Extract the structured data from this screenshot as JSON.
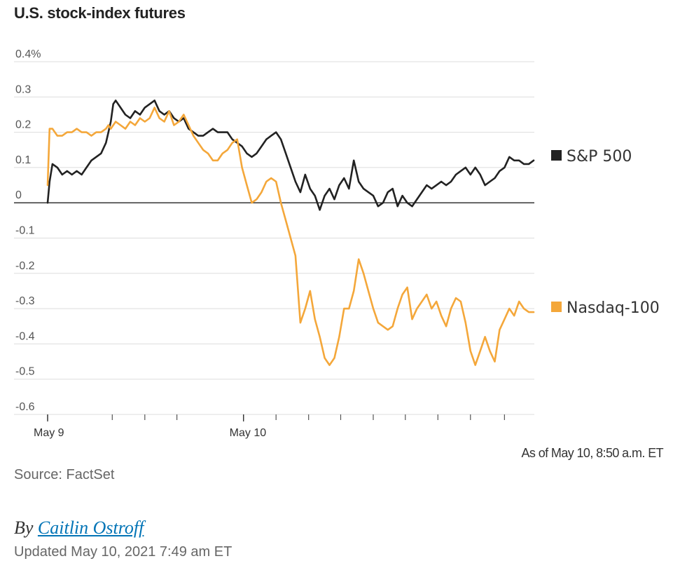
{
  "header": {
    "title": "U.S. stock-index futures"
  },
  "chart_data": {
    "type": "line",
    "title": "U.S. stock-index futures",
    "ylim": [
      -0.6,
      0.4
    ],
    "y_ticks": [
      "0.4%",
      "0.3",
      "0.2",
      "0.1",
      "0",
      "-0.1",
      "-0.2",
      "-0.3",
      "-0.4",
      "-0.5",
      "-0.6"
    ],
    "x_tick_labels": [
      "May 9",
      "May 10"
    ],
    "grid": true,
    "legend_placement": "right",
    "series": [
      {
        "name": "S&P 500",
        "color": "#222222",
        "points": [
          [
            0,
            0.0
          ],
          [
            0.4,
            0.06
          ],
          [
            1,
            0.11
          ],
          [
            2,
            0.1
          ],
          [
            3,
            0.08
          ],
          [
            4,
            0.09
          ],
          [
            5,
            0.08
          ],
          [
            6,
            0.09
          ],
          [
            7,
            0.08
          ],
          [
            8,
            0.1
          ],
          [
            9,
            0.12
          ],
          [
            10,
            0.13
          ],
          [
            11,
            0.14
          ],
          [
            12,
            0.17
          ],
          [
            12.5,
            0.2
          ],
          [
            13,
            0.23
          ],
          [
            13.5,
            0.28
          ],
          [
            14,
            0.29
          ],
          [
            15,
            0.27
          ],
          [
            16,
            0.25
          ],
          [
            17,
            0.24
          ],
          [
            18,
            0.26
          ],
          [
            19,
            0.25
          ],
          [
            20,
            0.27
          ],
          [
            21,
            0.28
          ],
          [
            22,
            0.29
          ],
          [
            23,
            0.26
          ],
          [
            24,
            0.25
          ],
          [
            25,
            0.26
          ],
          [
            26,
            0.24
          ],
          [
            27,
            0.23
          ],
          [
            28,
            0.24
          ],
          [
            29,
            0.21
          ],
          [
            30,
            0.2
          ],
          [
            31,
            0.19
          ],
          [
            32,
            0.19
          ],
          [
            33,
            0.2
          ],
          [
            34,
            0.21
          ],
          [
            35,
            0.2
          ],
          [
            36,
            0.2
          ],
          [
            37,
            0.2
          ],
          [
            38,
            0.18
          ],
          [
            39,
            0.17
          ],
          [
            40,
            0.16
          ],
          [
            41,
            0.14
          ],
          [
            42,
            0.13
          ],
          [
            43,
            0.14
          ],
          [
            44,
            0.16
          ],
          [
            45,
            0.18
          ],
          [
            46,
            0.19
          ],
          [
            47,
            0.2
          ],
          [
            48,
            0.18
          ],
          [
            49,
            0.14
          ],
          [
            50,
            0.1
          ],
          [
            51,
            0.06
          ],
          [
            52,
            0.03
          ],
          [
            53,
            0.08
          ],
          [
            54,
            0.04
          ],
          [
            55,
            0.02
          ],
          [
            56,
            -0.02
          ],
          [
            57,
            0.02
          ],
          [
            58,
            0.04
          ],
          [
            59,
            0.01
          ],
          [
            60,
            0.05
          ],
          [
            61,
            0.07
          ],
          [
            62,
            0.04
          ],
          [
            63,
            0.12
          ],
          [
            64,
            0.06
          ],
          [
            65,
            0.04
          ],
          [
            66,
            0.03
          ],
          [
            67,
            0.02
          ],
          [
            68,
            -0.01
          ],
          [
            69,
            0.0
          ],
          [
            70,
            0.03
          ],
          [
            71,
            0.04
          ],
          [
            72,
            -0.01
          ],
          [
            73,
            0.02
          ],
          [
            74,
            0.0
          ],
          [
            75,
            -0.01
          ],
          [
            76,
            0.01
          ],
          [
            77,
            0.03
          ],
          [
            78,
            0.05
          ],
          [
            79,
            0.04
          ],
          [
            80,
            0.05
          ],
          [
            81,
            0.06
          ],
          [
            82,
            0.05
          ],
          [
            83,
            0.06
          ],
          [
            84,
            0.08
          ],
          [
            85,
            0.09
          ],
          [
            86,
            0.1
          ],
          [
            87,
            0.08
          ],
          [
            88,
            0.1
          ],
          [
            89,
            0.08
          ],
          [
            90,
            0.05
          ],
          [
            91,
            0.06
          ],
          [
            92,
            0.07
          ],
          [
            93,
            0.09
          ],
          [
            94,
            0.1
          ],
          [
            95,
            0.13
          ],
          [
            96,
            0.12
          ],
          [
            97,
            0.12
          ],
          [
            98,
            0.11
          ],
          [
            99,
            0.11
          ],
          [
            100,
            0.12
          ]
        ]
      },
      {
        "name": "Nasdaq-100",
        "color": "#f4a73a",
        "points": [
          [
            0,
            0.05
          ],
          [
            0.4,
            0.21
          ],
          [
            1,
            0.21
          ],
          [
            2,
            0.19
          ],
          [
            3,
            0.19
          ],
          [
            4,
            0.2
          ],
          [
            5,
            0.2
          ],
          [
            6,
            0.21
          ],
          [
            7,
            0.2
          ],
          [
            8,
            0.2
          ],
          [
            9,
            0.19
          ],
          [
            10,
            0.2
          ],
          [
            11,
            0.2
          ],
          [
            12,
            0.21
          ],
          [
            12.5,
            0.22
          ],
          [
            13,
            0.21
          ],
          [
            13.5,
            0.22
          ],
          [
            14,
            0.23
          ],
          [
            15,
            0.22
          ],
          [
            16,
            0.21
          ],
          [
            17,
            0.23
          ],
          [
            18,
            0.22
          ],
          [
            19,
            0.24
          ],
          [
            20,
            0.23
          ],
          [
            21,
            0.24
          ],
          [
            22,
            0.27
          ],
          [
            23,
            0.24
          ],
          [
            24,
            0.23
          ],
          [
            25,
            0.26
          ],
          [
            26,
            0.22
          ],
          [
            27,
            0.23
          ],
          [
            28,
            0.25
          ],
          [
            29,
            0.22
          ],
          [
            30,
            0.19
          ],
          [
            31,
            0.17
          ],
          [
            32,
            0.15
          ],
          [
            33,
            0.14
          ],
          [
            34,
            0.12
          ],
          [
            35,
            0.12
          ],
          [
            36,
            0.14
          ],
          [
            37,
            0.15
          ],
          [
            38,
            0.17
          ],
          [
            39,
            0.18
          ],
          [
            40,
            0.1
          ],
          [
            41,
            0.05
          ],
          [
            42,
            0.0
          ],
          [
            43,
            0.01
          ],
          [
            44,
            0.03
          ],
          [
            45,
            0.06
          ],
          [
            46,
            0.07
          ],
          [
            47,
            0.06
          ],
          [
            48,
            0.0
          ],
          [
            49,
            -0.05
          ],
          [
            50,
            -0.1
          ],
          [
            51,
            -0.15
          ],
          [
            52,
            -0.34
          ],
          [
            53,
            -0.3
          ],
          [
            54,
            -0.25
          ],
          [
            55,
            -0.33
          ],
          [
            56,
            -0.38
          ],
          [
            57,
            -0.44
          ],
          [
            58,
            -0.46
          ],
          [
            59,
            -0.44
          ],
          [
            60,
            -0.38
          ],
          [
            61,
            -0.3
          ],
          [
            62,
            -0.3
          ],
          [
            63,
            -0.25
          ],
          [
            64,
            -0.16
          ],
          [
            65,
            -0.2
          ],
          [
            66,
            -0.25
          ],
          [
            67,
            -0.3
          ],
          [
            68,
            -0.34
          ],
          [
            69,
            -0.35
          ],
          [
            70,
            -0.36
          ],
          [
            71,
            -0.35
          ],
          [
            72,
            -0.3
          ],
          [
            73,
            -0.26
          ],
          [
            74,
            -0.24
          ],
          [
            75,
            -0.33
          ],
          [
            76,
            -0.3
          ],
          [
            77,
            -0.28
          ],
          [
            78,
            -0.26
          ],
          [
            79,
            -0.3
          ],
          [
            80,
            -0.28
          ],
          [
            81,
            -0.32
          ],
          [
            82,
            -0.35
          ],
          [
            83,
            -0.3
          ],
          [
            84,
            -0.27
          ],
          [
            85,
            -0.28
          ],
          [
            86,
            -0.34
          ],
          [
            87,
            -0.42
          ],
          [
            88,
            -0.46
          ],
          [
            89,
            -0.42
          ],
          [
            90,
            -0.38
          ],
          [
            91,
            -0.42
          ],
          [
            92,
            -0.45
          ],
          [
            93,
            -0.36
          ],
          [
            94,
            -0.33
          ],
          [
            95,
            -0.3
          ],
          [
            96,
            -0.32
          ],
          [
            97,
            -0.28
          ],
          [
            98,
            -0.3
          ],
          [
            99,
            -0.31
          ],
          [
            100,
            -0.31
          ]
        ]
      }
    ]
  },
  "asof": "As of May 10, 8:50 a.m. ET",
  "source": "Source: FactSet",
  "byline": {
    "prefix": "By",
    "author": "Caitlin Ostroff"
  },
  "updated": "Updated May 10, 2021 7:49 am ET"
}
